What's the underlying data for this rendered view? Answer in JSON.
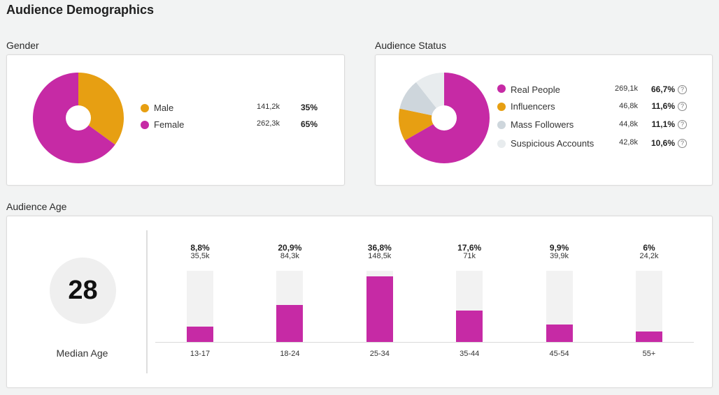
{
  "page_title": "Audience Demographics",
  "colors": {
    "magenta": "#c62aa5",
    "orange": "#e79f12",
    "gray": "#ced6dc",
    "lightgray": "#e8ecee",
    "track": "#f2f2f2"
  },
  "gender": {
    "label": "Gender",
    "items": [
      {
        "name": "Male",
        "count": "141,2k",
        "pct": "35%",
        "value": 35,
        "color": "#e79f12"
      },
      {
        "name": "Female",
        "count": "262,3k",
        "pct": "65%",
        "value": 65,
        "color": "#c62aa5"
      }
    ]
  },
  "status": {
    "label": "Audience Status",
    "help_glyph": "?",
    "items": [
      {
        "name": "Real People",
        "count": "269,1k",
        "pct": "66,7%",
        "value": 66.7,
        "color": "#c62aa5"
      },
      {
        "name": "Influencers",
        "count": "46,8k",
        "pct": "11,6%",
        "value": 11.6,
        "color": "#e79f12"
      },
      {
        "name": "Mass Followers",
        "count": "44,8k",
        "pct": "11,1%",
        "value": 11.1,
        "color": "#ced6dc"
      },
      {
        "name": "Suspicious Accounts",
        "count": "42,8k",
        "pct": "10,6%",
        "value": 10.6,
        "color": "#e8ecee"
      }
    ]
  },
  "age": {
    "label": "Audience Age",
    "median_value": "28",
    "median_label": "Median Age",
    "chart_data": {
      "type": "bar",
      "categories": [
        "13-17",
        "18-24",
        "25-34",
        "35-44",
        "45-54",
        "55+"
      ],
      "values": [
        8.8,
        20.9,
        36.8,
        17.6,
        9.9,
        6
      ],
      "pct_labels": [
        "8,8%",
        "20,9%",
        "36,8%",
        "17,6%",
        "9,9%",
        "6%"
      ],
      "count_labels": [
        "35,5k",
        "84,3k",
        "148,5k",
        "71k",
        "39,9k",
        "24,2k"
      ],
      "ylim": [
        0,
        40
      ],
      "title": "Audience Age",
      "xlabel": "",
      "ylabel": ""
    }
  }
}
